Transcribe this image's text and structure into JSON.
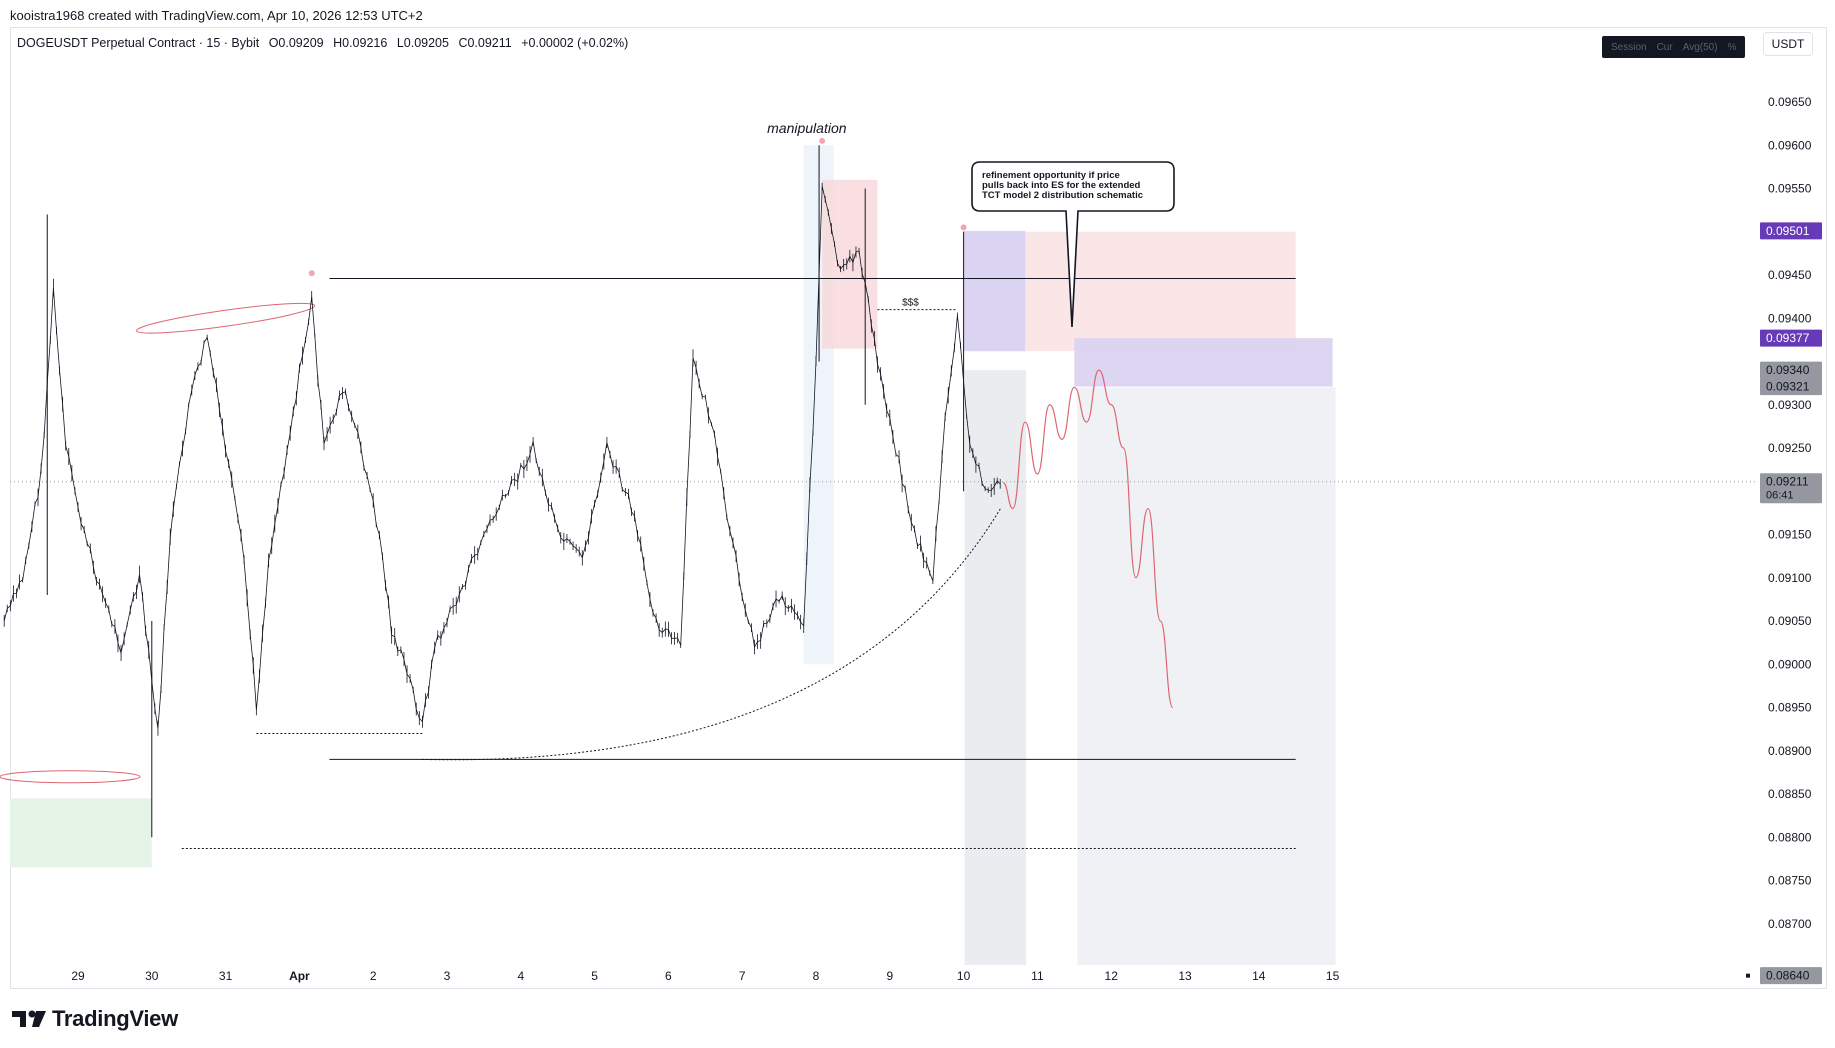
{
  "header": {
    "credit": "kooistra1968 created with TradingView.com, Apr 10, 2026 12:53 UTC+2"
  },
  "symbol": {
    "name": "DOGEUSDT Perpetual Contract · 15 · Bybit",
    "open": "O0.09209",
    "high": "H0.09216",
    "low": "L0.09205",
    "close": "C0.09211",
    "change": "+0.00002 (+0.02%)"
  },
  "toolbar": {
    "currency": "USDT",
    "scale_toggles": [
      "Session",
      "Cur",
      "Avg(50)",
      "%"
    ]
  },
  "footer": {
    "brand": "TradingView"
  },
  "colors": {
    "candle_up": "#131722",
    "candle_wick": "#131722",
    "projection": "#e06570",
    "supply_zone": "#f8d7da",
    "entry_zone": "#d9d2f2",
    "demand_zone": "#e6f4e8",
    "price_tag_purple": "#673ab7",
    "price_tag_gray": "#9598a1"
  },
  "chart_data": {
    "type": "candlestick",
    "title": "DOGEUSDT Perpetual Contract · 15 · Bybit",
    "x_tick_labels": [
      "29",
      "30",
      "31",
      "Apr",
      "2",
      "3",
      "4",
      "5",
      "6",
      "7",
      "8",
      "9",
      "10",
      "11",
      "12",
      "13",
      "14",
      "15"
    ],
    "y_tick_labels": [
      "0.09650",
      "0.09600",
      "0.09550",
      "0.09450",
      "0.09400",
      "0.09300",
      "0.09250",
      "0.09150",
      "0.09100",
      "0.09050",
      "0.09000",
      "0.08950",
      "0.08900",
      "0.08850",
      "0.08800",
      "0.08750",
      "0.08700"
    ],
    "ylim": [
      0.0862,
      0.0972
    ],
    "price_tags": [
      {
        "value": "0.09501",
        "style": "purple"
      },
      {
        "value": "0.09377",
        "style": "purple"
      },
      {
        "value": "0.09340",
        "style": "gray"
      },
      {
        "value": "0.09321",
        "style": "gray"
      },
      {
        "value": "0.09211",
        "sub": "06:41",
        "style": "gray"
      },
      {
        "value": "0.08640",
        "style": "gray"
      }
    ],
    "close_points": [
      [
        "Mar 28 00:00",
        0.0905
      ],
      [
        "Mar 28 06:00",
        0.091
      ],
      [
        "Mar 28 12:00",
        0.0922
      ],
      [
        "Mar 28 16:00",
        0.0943
      ],
      [
        "Mar 28 20:00",
        0.0925
      ],
      [
        "Mar 29 02:00",
        0.0915
      ],
      [
        "Mar 29 08:00",
        0.0908
      ],
      [
        "Mar 29 14:00",
        0.0902
      ],
      [
        "Mar 29 20:00",
        0.091
      ],
      [
        "Mar 30 02:00",
        0.0892
      ],
      [
        "Mar 30 06:00",
        0.0915
      ],
      [
        "Mar 30 12:00",
        0.093
      ],
      [
        "Mar 30 18:00",
        0.0938
      ],
      [
        "Mar 31 00:00",
        0.0925
      ],
      [
        "Mar 31 06:00",
        0.0912
      ],
      [
        "Mar 31 10:00",
        0.0895
      ],
      [
        "Mar 31 14:00",
        0.0912
      ],
      [
        "Mar 31 20:00",
        0.0925
      ],
      [
        "Apr 1 04:00",
        0.0942
      ],
      [
        "Apr 1 08:00",
        0.0925
      ],
      [
        "Apr 1 14:00",
        0.0932
      ],
      [
        "Apr 1 20:00",
        0.0925
      ],
      [
        "Apr 2 02:00",
        0.0915
      ],
      [
        "Apr 2 06:00",
        0.0904
      ],
      [
        "Apr 2 12:00",
        0.0898
      ],
      [
        "Apr 2 16:00",
        0.0893
      ],
      [
        "Apr 2 20:00",
        0.0902
      ],
      [
        "Apr 3 04:00",
        0.0908
      ],
      [
        "Apr 3 12:00",
        0.0915
      ],
      [
        "Apr 3 20:00",
        0.092
      ],
      [
        "Apr 4 04:00",
        0.0925
      ],
      [
        "Apr 4 12:00",
        0.0915
      ],
      [
        "Apr 4 20:00",
        0.0912
      ],
      [
        "Apr 5 04:00",
        0.0925
      ],
      [
        "Apr 5 12:00",
        0.0918
      ],
      [
        "Apr 5 20:00",
        0.0905
      ],
      [
        "Apr 6 04:00",
        0.0902
      ],
      [
        "Apr 6 08:00",
        0.0935
      ],
      [
        "Apr 6 14:00",
        0.0928
      ],
      [
        "Apr 6 20:00",
        0.0915
      ],
      [
        "Apr 7 04:00",
        0.0902
      ],
      [
        "Apr 7 12:00",
        0.0908
      ],
      [
        "Apr 7 20:00",
        0.0905
      ],
      [
        "Apr 8 00:00",
        0.0935
      ],
      [
        "Apr 8 02:00",
        0.0955
      ],
      [
        "Apr 8 08:00",
        0.0945
      ],
      [
        "Apr 8 14:00",
        0.0948
      ],
      [
        "Apr 8 20:00",
        0.0935
      ],
      [
        "Apr 9 02:00",
        0.0925
      ],
      [
        "Apr 9 08:00",
        0.0915
      ],
      [
        "Apr 9 14:00",
        0.091
      ],
      [
        "Apr 9 18:00",
        0.0928
      ],
      [
        "Apr 9 22:00",
        0.094
      ],
      [
        "Apr 10 02:00",
        0.0925
      ],
      [
        "Apr 10 08:00",
        0.092
      ],
      [
        "Apr 10 12:53",
        0.09211
      ]
    ],
    "projection_points": [
      [
        "Apr 10 12:53",
        0.0921
      ],
      [
        "Apr 10 16:00",
        0.0918
      ],
      [
        "Apr 10 20:00",
        0.0928
      ],
      [
        "Apr 11 00:00",
        0.0922
      ],
      [
        "Apr 11 04:00",
        0.093
      ],
      [
        "Apr 11 08:00",
        0.0926
      ],
      [
        "Apr 11 12:00",
        0.0932
      ],
      [
        "Apr 11 16:00",
        0.0928
      ],
      [
        "Apr 11 20:00",
        0.0934
      ],
      [
        "Apr 12 00:00",
        0.093
      ],
      [
        "Apr 12 04:00",
        0.0925
      ],
      [
        "Apr 12 08:00",
        0.091
      ],
      [
        "Apr 12 12:00",
        0.0918
      ],
      [
        "Apr 12 16:00",
        0.0905
      ],
      [
        "Apr 12 20:00",
        0.0895
      ]
    ],
    "levels": [
      {
        "name": "range-high",
        "value": 0.09446
      },
      {
        "name": "range-low",
        "value": 0.0889
      },
      {
        "name": "range-low-extension",
        "value": 0.08787
      }
    ],
    "zones": [
      {
        "name": "manipulation-supply",
        "from": "Apr 8 02:00",
        "to": "Apr 8 20:00",
        "low": 0.09365,
        "high": 0.0956
      },
      {
        "name": "extended-supply",
        "from": "Apr 10 00:00",
        "to": "Apr 14 12:00",
        "low": 0.09362,
        "high": 0.095
      },
      {
        "name": "entry-es",
        "from": "Apr 10 00:00",
        "to": "Apr 10 20:00",
        "low": 0.09362,
        "high": 0.09501
      },
      {
        "name": "refinement-zone",
        "from": "Apr 11 12:00",
        "to": "Apr 15 00:00",
        "low": 0.09321,
        "high": 0.09377
      },
      {
        "name": "demand-left",
        "from": "Mar 28 00:00",
        "to": "Mar 30 00:00",
        "low": 0.08765,
        "high": 0.08845
      }
    ],
    "annotations": [
      "manipulation",
      "$$$",
      "refinement opportunity if price pulls back into ES for the extended TCT model 2 distribution schematic"
    ],
    "grid": false,
    "legend": "none"
  }
}
